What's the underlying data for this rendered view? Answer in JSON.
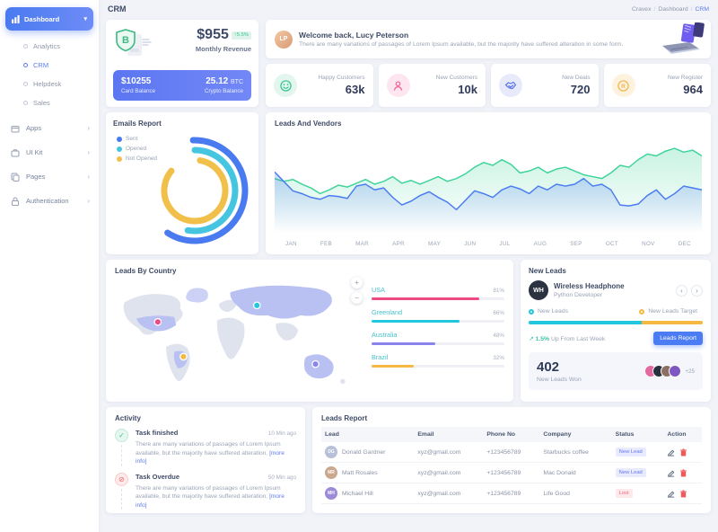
{
  "sidebar": {
    "dashboard_label": "Dashboard",
    "submenu": [
      {
        "label": "Analytics",
        "active": false
      },
      {
        "label": "CRM",
        "active": true
      },
      {
        "label": "Helpdesk",
        "active": false
      },
      {
        "label": "Sales",
        "active": false
      }
    ],
    "sections": [
      {
        "label": "Apps",
        "icon": "box-icon"
      },
      {
        "label": "UI Kit",
        "icon": "briefcase-icon"
      },
      {
        "label": "Pages",
        "icon": "pages-icon"
      },
      {
        "label": "Authentication",
        "icon": "lock-icon"
      }
    ]
  },
  "topbar": {
    "title": "CRM",
    "breadcrumb": [
      "Cravex",
      "Dashboard",
      "CRM"
    ]
  },
  "revenue_card": {
    "amount": "$955",
    "delta": "↑5.5%",
    "label": "Monthly Revenue",
    "card_balance": "$10255",
    "card_balance_label": "Card Balance",
    "crypto_amount": "25.12",
    "crypto_unit": "BTC",
    "crypto_label": "Crypto Balance"
  },
  "welcome": {
    "title": "Welcome back, Lucy Peterson",
    "subtitle": "There are many variations of passages of Lorem Ipsum available, but the majority have suffered alteration in some form.",
    "avatar_initials": "LP"
  },
  "stats": [
    {
      "label": "Happy Customers",
      "value": "63k",
      "icon": "smiley-icon",
      "color": "#34c38f",
      "bg": "#e2f6ee"
    },
    {
      "label": "New Customers",
      "value": "10k",
      "icon": "person-icon",
      "color": "#f0639a",
      "bg": "#fde6ef"
    },
    {
      "label": "New Deals",
      "value": "720",
      "icon": "handshake-icon",
      "color": "#5b73e8",
      "bg": "#e7eafb"
    },
    {
      "label": "New Register",
      "value": "964",
      "icon": "registered-icon",
      "color": "#f1b44c",
      "bg": "#fdf2de"
    }
  ],
  "emails_report": {
    "title": "Emails Report"
  },
  "leads_vendors": {
    "title": "Leads And Vendors"
  },
  "leads_by_country": {
    "title": "Leads By Country",
    "countries": [
      {
        "name": "USA",
        "pct": "81%",
        "value": 81,
        "color": "#ec4a82"
      },
      {
        "name": "Greenland",
        "pct": "66%",
        "value": 66,
        "color": "#22c7dd"
      },
      {
        "name": "Australia",
        "pct": "48%",
        "value": 48,
        "color": "#8a83ee"
      },
      {
        "name": "Brazil",
        "pct": "32%",
        "value": 32,
        "color": "#f5b942"
      }
    ]
  },
  "new_leads": {
    "title": "New Leads",
    "person_name": "Wireless Headphone",
    "person_role": "Python Developer",
    "person_initials": "WH",
    "legend_leads": "New Leads",
    "legend_target": "New Leads Target",
    "leads_color": "#22c7dd",
    "target_color": "#f5b942",
    "leads_pct": 65,
    "target_pct": 35,
    "up_pct": "1.5%",
    "up_rest": "Up From Last Week",
    "button_label": "Leads Report",
    "won_value": "402",
    "won_label": "New Leads Won",
    "won_avatars": [
      "#e568a0",
      "#27303f",
      "#8d6e63",
      "#7e57c2"
    ],
    "won_more": "+25"
  },
  "activity": {
    "title": "Activity",
    "items": [
      {
        "title": "Task finished",
        "time": "10 Min ago",
        "text": "There are many variations of passages of Lorem Ipsum available, but the majority have suffered alteration. ",
        "more": "[more info]"
      },
      {
        "title": "Task Overdue",
        "time": "50 Min ago",
        "text": "There are many variations of passages of Lorem Ipsum available, but the majority have suffered alteration. ",
        "more": "[more info]"
      }
    ]
  },
  "leads_report": {
    "title": "Leads Report",
    "columns": [
      "Lead",
      "Email",
      "Phone No",
      "Company",
      "Status",
      "Action"
    ],
    "rows": [
      {
        "name": "Donald Gardner",
        "initials": "DG",
        "avatar_color": "#b8c0d8",
        "email": "xyz@gmail.com",
        "phone": "+123456789",
        "company": "Starbucks coffee",
        "status": "New Lead",
        "status_type": "new"
      },
      {
        "name": "Matt Rosales",
        "initials": "MR",
        "avatar_color": "#c9a88e",
        "email": "xyz@gmail.com",
        "phone": "+123456789",
        "company": "Mac Donald",
        "status": "New Lead",
        "status_type": "new"
      },
      {
        "name": "Michael Hill",
        "initials": "MH",
        "avatar_color": "#9d8bd8",
        "email": "xyz@gmail.com",
        "phone": "+123456789",
        "company": "Life Good",
        "status": "Lost",
        "status_type": "lost"
      }
    ]
  },
  "chart_data": [
    {
      "type": "area",
      "title": "Leads And Vendors",
      "x_labels": [
        "JAN",
        "FEB",
        "MAR",
        "APR",
        "MAY",
        "JUN",
        "JUL",
        "AUG",
        "SEP",
        "OCT",
        "NOV",
        "DEC"
      ],
      "ylim": [
        0,
        100
      ],
      "grid": false,
      "legend_position": "none",
      "series": [
        {
          "name": "Leads",
          "color": "#3fd49a",
          "values": [
            58,
            55,
            57,
            52,
            48,
            42,
            46,
            51,
            49,
            53,
            57,
            52,
            55,
            60,
            53,
            56,
            52,
            56,
            60,
            55,
            58,
            63,
            70,
            75,
            72,
            78,
            73,
            64,
            66,
            70,
            64,
            68,
            70,
            66,
            62,
            60,
            58,
            64,
            72,
            70,
            78,
            84,
            82,
            87,
            90,
            86,
            88,
            82
          ]
        },
        {
          "name": "Vendors",
          "color": "#4a7cf0",
          "values": [
            65,
            55,
            45,
            42,
            38,
            36,
            40,
            39,
            37,
            50,
            52,
            46,
            48,
            38,
            30,
            34,
            40,
            44,
            38,
            33,
            25,
            35,
            45,
            42,
            38,
            46,
            50,
            47,
            42,
            50,
            46,
            52,
            50,
            52,
            58,
            50,
            52,
            46,
            30,
            29,
            31,
            40,
            46,
            36,
            42,
            50,
            48,
            46
          ]
        }
      ]
    },
    {
      "type": "donut",
      "title": "Emails Report",
      "segments": [
        {
          "label": "Sent",
          "color": "#4a7af0",
          "start_deg": -92,
          "sweep_deg": 215,
          "radius": 56
        },
        {
          "label": "Opened",
          "color": "#45c5e0",
          "start_deg": -90,
          "sweep_deg": 190,
          "radius": 45
        },
        {
          "label": "Not Opened",
          "color": "#f0c04b",
          "start_deg": -80,
          "sweep_deg": 300,
          "radius": 34
        }
      ]
    },
    {
      "type": "bar",
      "title": "Leads By Country",
      "categories": [
        "USA",
        "Greenland",
        "Australia",
        "Brazil"
      ],
      "values": [
        81,
        66,
        48,
        32
      ],
      "unit": "%"
    }
  ]
}
